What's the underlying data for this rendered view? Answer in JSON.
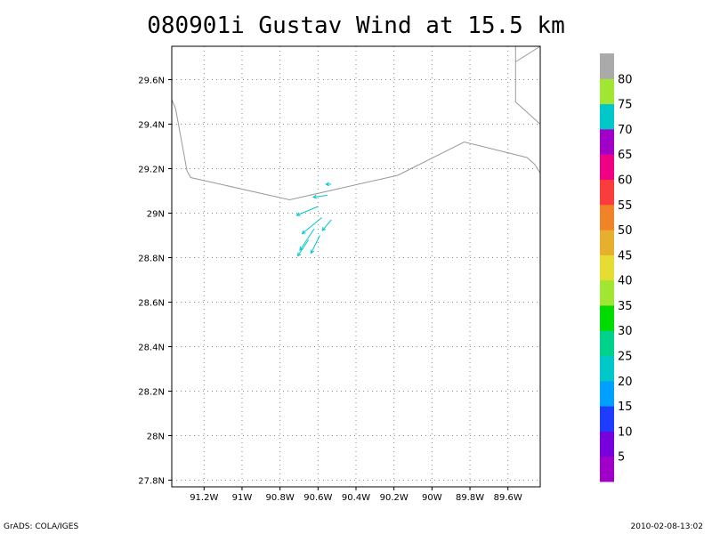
{
  "chart_data": {
    "type": "vector",
    "title": "080901i Gustav Wind at 15.5 km",
    "x_ticks": [
      "91.2W",
      "91W",
      "90.8W",
      "90.6W",
      "90.4W",
      "90.2W",
      "90W",
      "89.8W",
      "89.6W"
    ],
    "x_tick_values": [
      -91.2,
      -91.0,
      -90.8,
      -90.6,
      -90.4,
      -90.2,
      -90.0,
      -89.8,
      -89.6
    ],
    "y_ticks": [
      "27.8N",
      "28N",
      "28.2N",
      "28.4N",
      "28.6N",
      "28.8N",
      "29N",
      "29.2N",
      "29.4N",
      "29.6N"
    ],
    "y_tick_values": [
      27.8,
      28.0,
      28.2,
      28.4,
      28.6,
      28.8,
      29.0,
      29.2,
      29.4,
      29.6
    ],
    "xlim": [
      -91.37,
      -89.43
    ],
    "ylim": [
      27.77,
      29.75
    ],
    "grid": true,
    "coastline": [
      [
        [
          -91.37,
          29.51
        ],
        [
          -91.35,
          29.47
        ],
        [
          -91.29,
          29.19
        ],
        [
          -91.27,
          29.16
        ],
        [
          -90.75,
          29.06
        ],
        [
          -90.18,
          29.17
        ],
        [
          -89.83,
          29.32
        ],
        [
          -89.5,
          29.25
        ],
        [
          -89.46,
          29.22
        ],
        [
          -89.43,
          29.18
        ]
      ],
      [
        [
          -89.56,
          29.75
        ],
        [
          -89.56,
          29.68
        ],
        [
          -89.56,
          29.5
        ],
        [
          -89.43,
          29.4
        ]
      ],
      [
        [
          -89.56,
          29.68
        ],
        [
          -89.43,
          29.75
        ]
      ]
    ],
    "vectors": [
      {
        "lon": -90.53,
        "lat": 29.13,
        "u": -3,
        "v": 0
      },
      {
        "lon": -90.55,
        "lat": 29.08,
        "u": -8,
        "v": -1
      },
      {
        "lon": -90.6,
        "lat": 29.03,
        "u": -12,
        "v": -5
      },
      {
        "lon": -90.58,
        "lat": 28.98,
        "u": -11,
        "v": -9
      },
      {
        "lon": -90.62,
        "lat": 28.93,
        "u": -8,
        "v": -12
      },
      {
        "lon": -90.59,
        "lat": 28.9,
        "u": -5,
        "v": -10
      },
      {
        "lon": -90.65,
        "lat": 28.88,
        "u": -6,
        "v": -9
      },
      {
        "lon": -90.53,
        "lat": 28.97,
        "u": -5,
        "v": -6
      }
    ],
    "vector_color": "#00c8c8",
    "colorbar": {
      "labels": [
        "5",
        "10",
        "15",
        "20",
        "25",
        "30",
        "35",
        "40",
        "45",
        "50",
        "55",
        "60",
        "65",
        "70",
        "75",
        "80"
      ],
      "colors": [
        "#a000c8",
        "#7800dc",
        "#1e3cff",
        "#00a0ff",
        "#00c8c8",
        "#00d28c",
        "#00dc00",
        "#a0e632",
        "#e6dc32",
        "#e6af2d",
        "#f08228",
        "#fa3c3c",
        "#f00082",
        "#a000c8",
        "#00c8c8",
        "#a0e632",
        "#aaaaaa"
      ]
    }
  },
  "footer": {
    "left": "GrADS: COLA/IGES",
    "right": "2010-02-08-13:02"
  }
}
